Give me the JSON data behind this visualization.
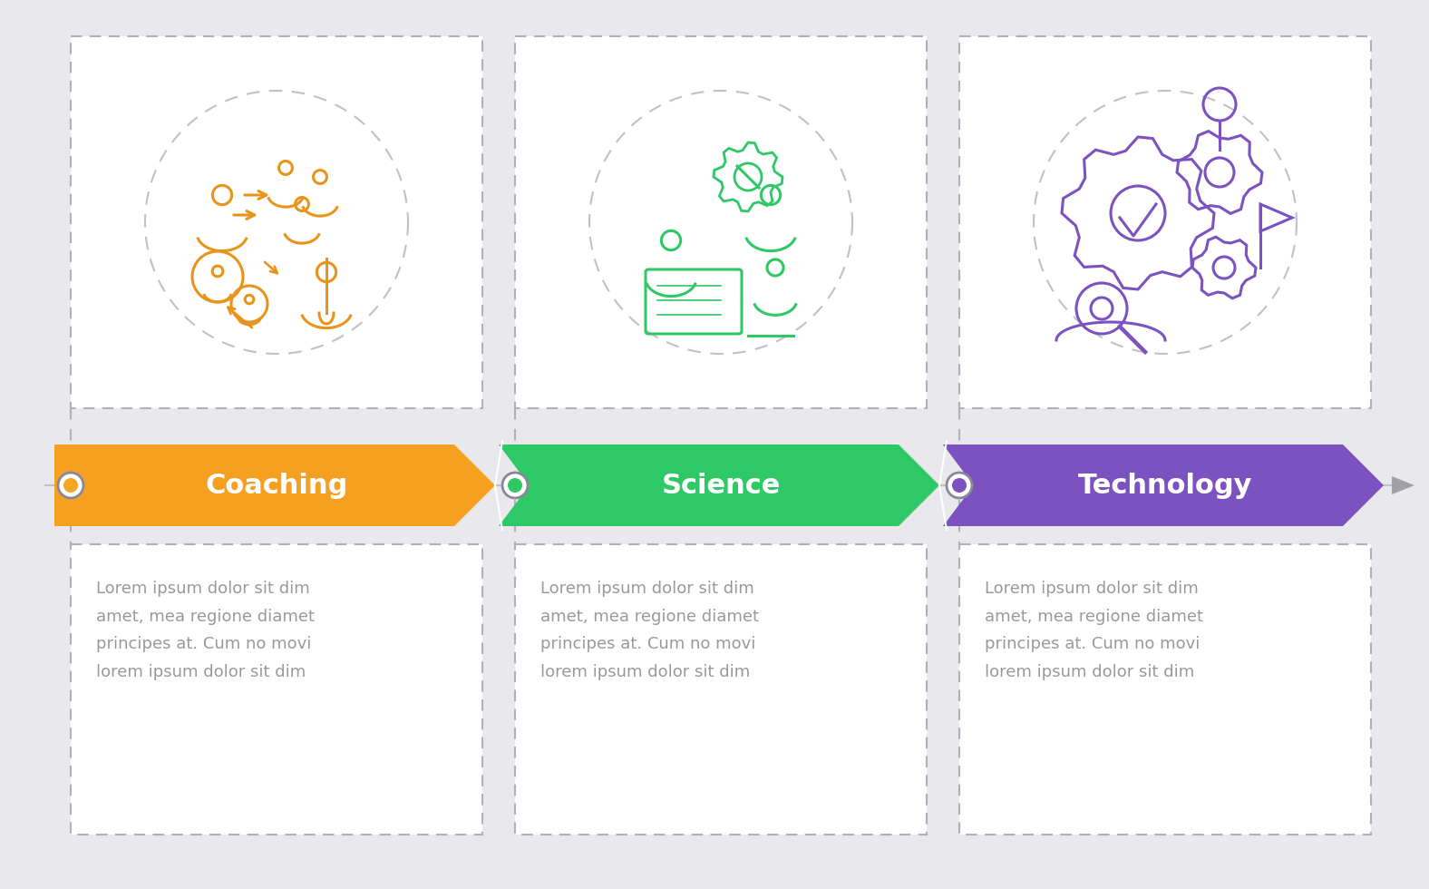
{
  "background_color": "#e9e9ed",
  "steps": [
    {
      "label": "Coaching",
      "color_left": "#f5a020",
      "color_right": "#f5a020",
      "dot_color": "#f5a623",
      "dot_border": "#888899",
      "text": "Lorem ipsum dolor sit dim\namet, mea regione diamet\nprincipes at. Cum no movi\nlorem ipsum dolor sit dim",
      "icon_color": "#e8941a"
    },
    {
      "label": "Science",
      "color_left": "#2ec866",
      "color_right": "#2ec866",
      "dot_color": "#2ec866",
      "dot_border": "#2ec866",
      "text": "Lorem ipsum dolor sit dim\namet, mea regione diamet\nprincipes at. Cum no movi\nlorem ipsum dolor sit dim",
      "icon_color": "#2ec866"
    },
    {
      "label": "Technology",
      "color_left": "#7b52c0",
      "color_right": "#7b52c0",
      "dot_color": "#7b52c0",
      "dot_border": "#7b52c0",
      "text": "Lorem ipsum dolor sit dim\namet, mea regione diamet\nprincipes at. Cum no movi\nlorem ipsum dolor sit dim",
      "icon_color": "#7b52c0"
    }
  ],
  "figsize": [
    15.76,
    9.8
  ],
  "dpi": 100,
  "timeline_color": "#c0c0cc",
  "dash_color": "#b0b0bc",
  "box_bg": "#ffffff",
  "text_color": "#999999",
  "label_color": "#ffffff",
  "arrow_tip_color": "#a0a0aa"
}
